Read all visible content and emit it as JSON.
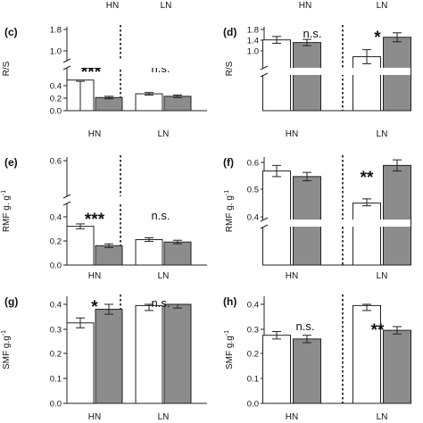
{
  "header": {
    "left_group": "HN",
    "right_group": "LN"
  },
  "colors": {
    "white_bar": "#ffffff",
    "grey_bar": "#8c8c8c",
    "stroke": "#222222"
  },
  "chart_data": [
    {
      "id": "c",
      "label": "(c)",
      "type": "bar",
      "ylabel": "R/S",
      "groups": [
        "HN",
        "LN"
      ],
      "series": [
        {
          "values": [
            0.49,
            0.27
          ],
          "errors": [
            0.02,
            0.02
          ]
        },
        {
          "values": [
            0.21,
            0.23
          ],
          "errors": [
            0.02,
            0.02
          ]
        }
      ],
      "ytick_labels": [
        "0.0",
        "0.2",
        "0.4",
        "1.0",
        "1.8"
      ],
      "yaxis_break": true,
      "significance": [
        "***",
        "n.s."
      ]
    },
    {
      "id": "d",
      "label": "(d)",
      "type": "bar",
      "ylabel": "R/S",
      "groups": [
        "HN",
        "LN"
      ],
      "series": [
        {
          "values": [
            1.4,
            0.92
          ],
          "errors": [
            0.13,
            0.12
          ]
        },
        {
          "values": [
            1.3,
            1.5
          ],
          "errors": [
            0.12,
            0.17
          ]
        }
      ],
      "ytick_labels": [
        "1.0",
        "1.4",
        "1.8"
      ],
      "yaxis_break": true,
      "significance": [
        "n.s.",
        "*"
      ]
    },
    {
      "id": "e",
      "label": "(e)",
      "type": "bar",
      "ylabel": "RMF g. g",
      "ylabel_sup": "-1",
      "groups": [
        "HN",
        "LN"
      ],
      "series": [
        {
          "values": [
            0.32,
            0.21
          ],
          "errors": [
            0.02,
            0.015
          ]
        },
        {
          "values": [
            0.16,
            0.19
          ],
          "errors": [
            0.015,
            0.015
          ]
        }
      ],
      "ytick_labels": [
        "0.0",
        "0.2",
        "0.4",
        "0.6"
      ],
      "yaxis_break": true,
      "significance": [
        "***",
        "n.s."
      ]
    },
    {
      "id": "f",
      "label": "(f)",
      "type": "bar",
      "ylabel": "RMF g. g",
      "ylabel_sup": "-1",
      "groups": [
        "HN",
        "LN"
      ],
      "series": [
        {
          "values": [
            0.57,
            0.45
          ],
          "errors": [
            0.02,
            0.02
          ]
        },
        {
          "values": [
            0.55,
            0.59
          ],
          "errors": [
            0.015,
            0.02
          ]
        }
      ],
      "ytick_labels": [
        "0.4",
        "0.5",
        "0.6"
      ],
      "yaxis_break": true,
      "significance": [
        "",
        "**"
      ]
    },
    {
      "id": "g",
      "label": "(g)",
      "type": "bar",
      "ylabel": "SMF g.g",
      "ylabel_sup": "-1",
      "groups": [
        "HN",
        "LN"
      ],
      "series": [
        {
          "values": [
            0.325,
            0.395
          ],
          "errors": [
            0.02,
            0.02
          ]
        },
        {
          "values": [
            0.38,
            0.4
          ],
          "errors": [
            0.02,
            0.015
          ]
        }
      ],
      "ytick_labels": [
        "0.0",
        "0.1",
        "0.2",
        "0.3",
        "0.4"
      ],
      "yaxis_break": false,
      "significance": [
        "*",
        "n.s."
      ]
    },
    {
      "id": "h",
      "label": "(h)",
      "type": "bar",
      "ylabel": "SMF g.g",
      "ylabel_sup": "-1",
      "groups": [
        "HN",
        "LN"
      ],
      "series": [
        {
          "values": [
            0.275,
            0.395
          ],
          "errors": [
            0.015,
            0.02
          ]
        },
        {
          "values": [
            0.26,
            0.295
          ],
          "errors": [
            0.015,
            0.015
          ]
        }
      ],
      "ytick_labels": [
        "0.0",
        "0.1",
        "0.2",
        "0.3",
        "0.4"
      ],
      "yaxis_break": false,
      "significance": [
        "n.s.",
        "**"
      ]
    }
  ]
}
